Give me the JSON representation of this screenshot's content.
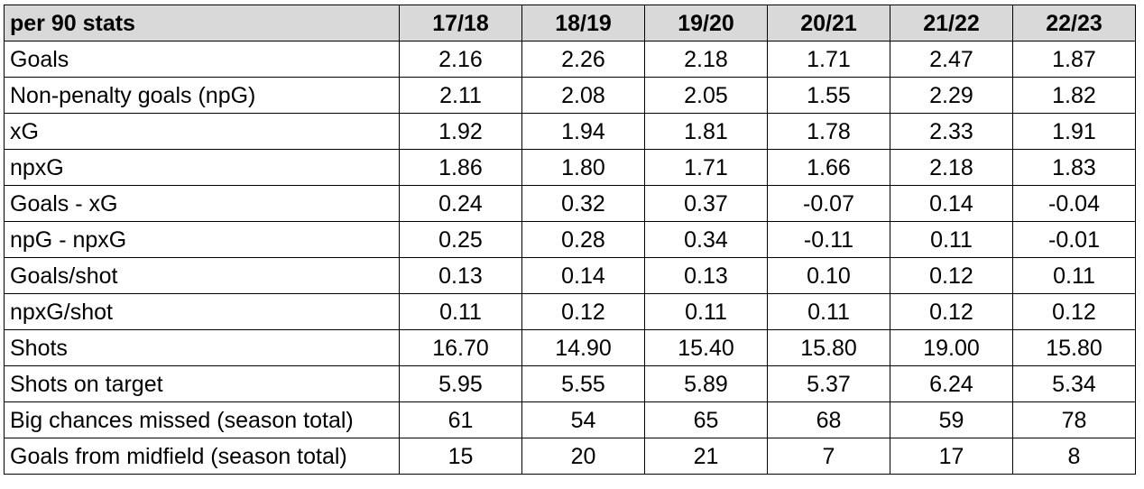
{
  "table": {
    "header": {
      "label": "per 90 stats",
      "seasons": [
        "17/18",
        "18/19",
        "19/20",
        "20/21",
        "21/22",
        "22/23"
      ]
    },
    "rows": [
      {
        "label": "Goals",
        "values": [
          "2.16",
          "2.26",
          "2.18",
          "1.71",
          "2.47",
          "1.87"
        ]
      },
      {
        "label": "Non-penalty goals (npG)",
        "values": [
          "2.11",
          "2.08",
          "2.05",
          "1.55",
          "2.29",
          "1.82"
        ]
      },
      {
        "label": "xG",
        "values": [
          "1.92",
          "1.94",
          "1.81",
          "1.78",
          "2.33",
          "1.91"
        ]
      },
      {
        "label": "npxG",
        "values": [
          "1.86",
          "1.80",
          "1.71",
          "1.66",
          "2.18",
          "1.83"
        ]
      },
      {
        "label": "Goals - xG",
        "values": [
          "0.24",
          "0.32",
          "0.37",
          "-0.07",
          "0.14",
          "-0.04"
        ]
      },
      {
        "label": "npG - npxG",
        "values": [
          "0.25",
          "0.28",
          "0.34",
          "-0.11",
          "0.11",
          "-0.01"
        ]
      },
      {
        "label": "Goals/shot",
        "values": [
          "0.13",
          "0.14",
          "0.13",
          "0.10",
          "0.12",
          "0.11"
        ]
      },
      {
        "label": "npxG/shot",
        "values": [
          "0.11",
          "0.12",
          "0.11",
          "0.11",
          "0.12",
          "0.12"
        ]
      },
      {
        "label": "Shots",
        "values": [
          "16.70",
          "14.90",
          "15.40",
          "15.80",
          "19.00",
          "15.80"
        ]
      },
      {
        "label": "Shots on target",
        "values": [
          "5.95",
          "5.55",
          "5.89",
          "5.37",
          "6.24",
          "5.34"
        ]
      },
      {
        "label": "Big chances missed (season total)",
        "values": [
          "61",
          "54",
          "65",
          "68",
          "59",
          "78"
        ]
      },
      {
        "label": "Goals from midfield (season total)",
        "values": [
          "15",
          "20",
          "21",
          "7",
          "17",
          "8"
        ]
      }
    ]
  },
  "colors": {
    "header_background": "#d9d9d9",
    "border": "#000000",
    "text": "#000000",
    "cell_background": "#ffffff"
  }
}
